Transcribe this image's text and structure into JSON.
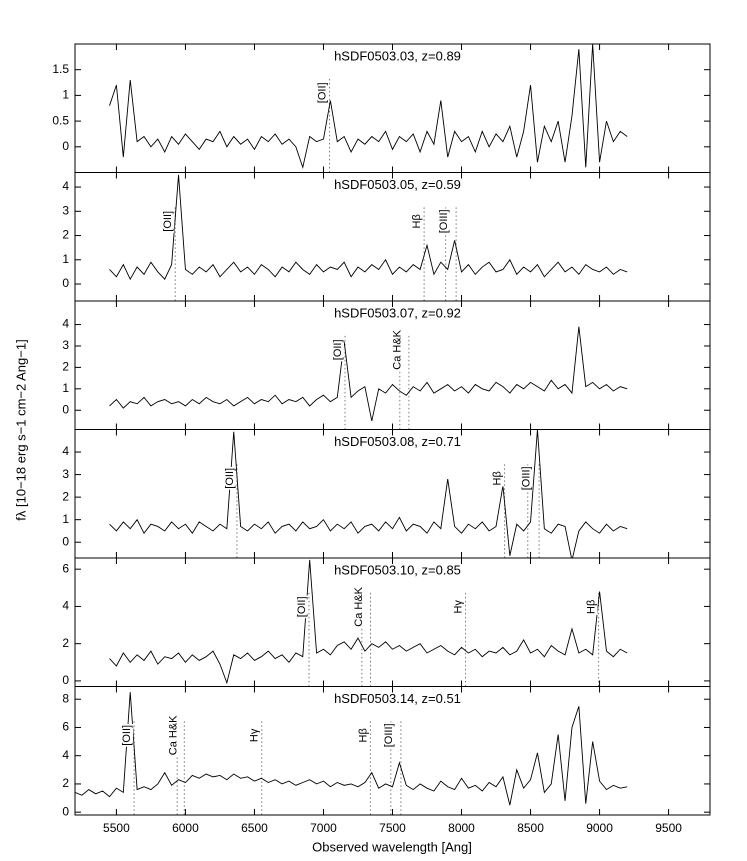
{
  "shared": {
    "xlabel": "Observed wavelength [Ang]",
    "ylabel": "fλ [10−18 erg s−1 cm−2 Ang−1]"
  },
  "chart_data": [
    {
      "type": "line",
      "title": "hSDF0503.03, z=0.89",
      "xlim": [
        5200,
        9800
      ],
      "xticks": [
        5500,
        6000,
        6500,
        7000,
        7500,
        8000,
        8500,
        9000,
        9500
      ],
      "ylim": [
        -0.5,
        2
      ],
      "yticks": [
        0,
        0.5,
        1,
        1.5
      ],
      "x": [
        5450,
        5500,
        5550,
        5600,
        5650,
        5700,
        5750,
        5800,
        5850,
        5900,
        5950,
        6000,
        6050,
        6100,
        6150,
        6200,
        6250,
        6300,
        6350,
        6400,
        6450,
        6500,
        6550,
        6600,
        6650,
        6700,
        6750,
        6800,
        6850,
        6900,
        6950,
        7000,
        7050,
        7100,
        7150,
        7200,
        7250,
        7300,
        7350,
        7400,
        7450,
        7500,
        7550,
        7600,
        7650,
        7700,
        7750,
        7800,
        7850,
        7900,
        7950,
        8000,
        8050,
        8100,
        8150,
        8200,
        8250,
        8300,
        8350,
        8400,
        8450,
        8500,
        8550,
        8600,
        8650,
        8700,
        8750,
        8800,
        8850,
        8900,
        8950,
        9000,
        9050,
        9100,
        9150,
        9200
      ],
      "series": [
        {
          "color": "#000000",
          "values": [
            0.8,
            1.2,
            -0.2,
            1.3,
            0.1,
            0.2,
            0.0,
            0.15,
            -0.1,
            0.2,
            0.05,
            0.25,
            0.1,
            -0.05,
            0.15,
            0.1,
            0.3,
            0.0,
            0.2,
            0.05,
            0.15,
            -0.05,
            0.2,
            0.1,
            0.25,
            0.05,
            0.15,
            0.0,
            -0.4,
            0.2,
            0.1,
            0.15,
            0.9,
            0.1,
            0.2,
            -0.1,
            0.15,
            0.05,
            0.2,
            0.1,
            0.3,
            -0.05,
            0.2,
            0.1,
            0.25,
            -0.1,
            0.3,
            0.05,
            0.9,
            -0.2,
            0.3,
            0.1,
            0.2,
            -0.1,
            0.3,
            0.0,
            0.25,
            0.1,
            0.4,
            -0.2,
            0.3,
            1.2,
            -0.3,
            0.4,
            0.1,
            0.5,
            -0.3,
            0.6,
            1.9,
            -0.4,
            2.0,
            -0.3,
            0.5,
            0.1,
            0.3,
            0.2
          ]
        }
      ],
      "annotations": [
        {
          "label": "[OII]",
          "x": [
            7044
          ]
        }
      ]
    },
    {
      "type": "line",
      "title": "hSDF0503.05, z=0.59",
      "xlim": [
        5200,
        9800
      ],
      "xticks": [
        5500,
        6000,
        6500,
        7000,
        7500,
        8000,
        8500,
        9000,
        9500
      ],
      "ylim": [
        -0.7,
        4.6
      ],
      "yticks": [
        0,
        1,
        2,
        3,
        4
      ],
      "x": [
        5450,
        5500,
        5550,
        5600,
        5650,
        5700,
        5750,
        5800,
        5850,
        5900,
        5950,
        6000,
        6050,
        6100,
        6150,
        6200,
        6250,
        6300,
        6350,
        6400,
        6450,
        6500,
        6550,
        6600,
        6650,
        6700,
        6750,
        6800,
        6850,
        6900,
        6950,
        7000,
        7050,
        7100,
        7150,
        7200,
        7250,
        7300,
        7350,
        7400,
        7450,
        7500,
        7550,
        7600,
        7650,
        7700,
        7750,
        7800,
        7850,
        7900,
        7950,
        8000,
        8050,
        8100,
        8150,
        8200,
        8250,
        8300,
        8350,
        8400,
        8450,
        8500,
        8550,
        8600,
        8650,
        8700,
        8750,
        8800,
        8850,
        8900,
        8950,
        9000,
        9050,
        9100,
        9150,
        9200
      ],
      "series": [
        {
          "color": "#000000",
          "values": [
            0.6,
            0.3,
            0.8,
            0.2,
            0.7,
            0.4,
            0.9,
            0.5,
            0.2,
            0.8,
            4.5,
            0.6,
            0.4,
            0.7,
            0.5,
            0.8,
            0.3,
            0.6,
            0.9,
            0.5,
            0.7,
            0.4,
            0.8,
            0.6,
            0.3,
            0.7,
            0.5,
            0.9,
            0.6,
            0.4,
            0.8,
            0.5,
            0.7,
            0.6,
            0.9,
            0.3,
            0.7,
            0.5,
            0.8,
            0.6,
            1.0,
            0.4,
            0.7,
            0.5,
            0.8,
            0.6,
            1.6,
            0.4,
            0.9,
            0.6,
            1.8,
            0.5,
            0.8,
            0.4,
            0.7,
            0.9,
            0.5,
            0.6,
            1.0,
            0.4,
            0.7,
            0.5,
            0.8,
            0.3,
            0.6,
            0.9,
            0.5,
            0.7,
            0.4,
            0.8,
            0.6,
            0.5,
            0.7,
            0.4,
            0.6,
            0.5
          ]
        }
      ],
      "annotations": [
        {
          "label": "[OII]",
          "x": [
            5926
          ]
        },
        {
          "label": "Hβ",
          "x": [
            7729
          ]
        },
        {
          "label": "[OIII]",
          "x": [
            7885,
            7961
          ]
        }
      ]
    },
    {
      "type": "line",
      "title": "hSDF0503.07, z=0.92",
      "xlim": [
        5200,
        9800
      ],
      "xticks": [
        5500,
        6000,
        6500,
        7000,
        7500,
        8000,
        8500,
        9000,
        9500
      ],
      "ylim": [
        -0.9,
        5.1
      ],
      "yticks": [
        0,
        1,
        2,
        3,
        4
      ],
      "x": [
        5450,
        5500,
        5550,
        5600,
        5650,
        5700,
        5750,
        5800,
        5850,
        5900,
        5950,
        6000,
        6050,
        6100,
        6150,
        6200,
        6250,
        6300,
        6350,
        6400,
        6450,
        6500,
        6550,
        6600,
        6650,
        6700,
        6750,
        6800,
        6850,
        6900,
        6950,
        7000,
        7050,
        7100,
        7150,
        7200,
        7250,
        7300,
        7350,
        7400,
        7450,
        7500,
        7550,
        7600,
        7650,
        7700,
        7750,
        7800,
        7850,
        7900,
        7950,
        8000,
        8050,
        8100,
        8150,
        8200,
        8250,
        8300,
        8350,
        8400,
        8450,
        8500,
        8550,
        8600,
        8650,
        8700,
        8750,
        8800,
        8850,
        8900,
        8950,
        9000,
        9050,
        9100,
        9150,
        9200
      ],
      "series": [
        {
          "color": "#000000",
          "values": [
            0.2,
            0.5,
            0.1,
            0.4,
            0.3,
            0.6,
            0.2,
            0.4,
            0.5,
            0.3,
            0.4,
            0.2,
            0.5,
            0.3,
            0.6,
            0.4,
            0.3,
            0.5,
            0.2,
            0.4,
            0.6,
            0.3,
            0.5,
            0.4,
            0.7,
            0.3,
            0.5,
            0.4,
            0.6,
            0.2,
            0.5,
            0.7,
            0.4,
            0.6,
            3.2,
            0.6,
            0.9,
            1.1,
            -0.5,
            1.0,
            0.8,
            1.2,
            0.9,
            0.7,
            1.1,
            0.9,
            1.3,
            0.8,
            1.0,
            1.2,
            0.9,
            1.1,
            0.8,
            1.2,
            1.0,
            0.9,
            1.3,
            1.1,
            0.8,
            1.2,
            1.0,
            1.3,
            1.1,
            0.9,
            1.4,
            1.0,
            1.2,
            0.8,
            3.9,
            1.1,
            1.3,
            1.0,
            1.2,
            0.9,
            1.1,
            1.0
          ]
        }
      ],
      "annotations": [
        {
          "label": "[OII]",
          "x": [
            7156
          ]
        },
        {
          "label": "Ca H&K",
          "x": [
            7553,
            7619
          ]
        }
      ]
    },
    {
      "type": "line",
      "title": "hSDF0503.08, z=0.71",
      "xlim": [
        5200,
        9800
      ],
      "xticks": [
        5500,
        6000,
        6500,
        7000,
        7500,
        8000,
        8500,
        9000,
        9500
      ],
      "ylim": [
        -0.7,
        5
      ],
      "yticks": [
        0,
        1,
        2,
        3,
        4
      ],
      "x": [
        5450,
        5500,
        5550,
        5600,
        5650,
        5700,
        5750,
        5800,
        5850,
        5900,
        5950,
        6000,
        6050,
        6100,
        6150,
        6200,
        6250,
        6300,
        6350,
        6400,
        6450,
        6500,
        6550,
        6600,
        6650,
        6700,
        6750,
        6800,
        6850,
        6900,
        6950,
        7000,
        7050,
        7100,
        7150,
        7200,
        7250,
        7300,
        7350,
        7400,
        7450,
        7500,
        7550,
        7600,
        7650,
        7700,
        7750,
        7800,
        7850,
        7900,
        7950,
        8000,
        8050,
        8100,
        8150,
        8200,
        8250,
        8300,
        8350,
        8400,
        8450,
        8500,
        8550,
        8600,
        8650,
        8700,
        8750,
        8800,
        8850,
        8900,
        8950,
        9000,
        9050,
        9100,
        9150,
        9200
      ],
      "series": [
        {
          "color": "#000000",
          "values": [
            0.8,
            0.5,
            0.9,
            0.6,
            1.0,
            0.4,
            0.8,
            0.7,
            0.5,
            0.9,
            0.6,
            0.8,
            0.4,
            0.9,
            0.7,
            0.5,
            0.8,
            0.6,
            4.9,
            0.7,
            0.5,
            0.8,
            0.6,
            0.9,
            0.4,
            0.7,
            0.8,
            0.5,
            0.9,
            0.6,
            0.7,
            1.0,
            0.5,
            0.8,
            0.6,
            0.9,
            0.4,
            0.7,
            0.8,
            0.5,
            0.9,
            0.6,
            1.1,
            0.5,
            0.8,
            0.7,
            0.4,
            0.9,
            0.6,
            2.8,
            0.7,
            0.4,
            0.8,
            0.6,
            0.9,
            0.5,
            0.7,
            2.5,
            -0.6,
            0.8,
            0.5,
            0.9,
            5.0,
            0.6,
            0.4,
            0.8,
            0.7,
            -0.8,
            0.5,
            0.9,
            0.6,
            0.4,
            0.8,
            0.5,
            0.7,
            0.6
          ]
        }
      ],
      "annotations": [
        {
          "label": "[OII]",
          "x": [
            6373
          ]
        },
        {
          "label": "Hβ",
          "x": [
            8312
          ]
        },
        {
          "label": "[OIII]",
          "x": [
            8480,
            8562
          ]
        }
      ]
    },
    {
      "type": "line",
      "title": "hSDF0503.10, z=0.85",
      "xlim": [
        5200,
        9800
      ],
      "xticks": [
        5500,
        6000,
        6500,
        7000,
        7500,
        8000,
        8500,
        9000,
        9500
      ],
      "ylim": [
        -0.3,
        6.6
      ],
      "yticks": [
        0,
        2,
        4,
        6
      ],
      "x": [
        5450,
        5500,
        5550,
        5600,
        5650,
        5700,
        5750,
        5800,
        5850,
        5900,
        5950,
        6000,
        6050,
        6100,
        6150,
        6200,
        6250,
        6300,
        6350,
        6400,
        6450,
        6500,
        6550,
        6600,
        6650,
        6700,
        6750,
        6800,
        6850,
        6900,
        6950,
        7000,
        7050,
        7100,
        7150,
        7200,
        7250,
        7300,
        7350,
        7400,
        7450,
        7500,
        7550,
        7600,
        7650,
        7700,
        7750,
        7800,
        7850,
        7900,
        7950,
        8000,
        8050,
        8100,
        8150,
        8200,
        8250,
        8300,
        8350,
        8400,
        8450,
        8500,
        8550,
        8600,
        8650,
        8700,
        8750,
        8800,
        8850,
        8900,
        8950,
        9000,
        9050,
        9100,
        9150,
        9200
      ],
      "series": [
        {
          "color": "#000000",
          "values": [
            1.2,
            0.8,
            1.5,
            1.0,
            1.4,
            1.1,
            1.6,
            0.9,
            1.3,
            1.2,
            1.5,
            1.0,
            1.4,
            1.1,
            1.3,
            1.6,
            0.9,
            -0.1,
            1.4,
            1.2,
            1.5,
            1.1,
            1.3,
            1.6,
            1.2,
            1.4,
            1.0,
            1.5,
            1.3,
            6.5,
            1.5,
            1.7,
            1.4,
            1.9,
            2.1,
            1.7,
            2.3,
            1.6,
            2.0,
            1.8,
            2.1,
            1.7,
            1.9,
            1.6,
            1.8,
            2.0,
            1.5,
            1.7,
            1.9,
            1.6,
            1.4,
            1.8,
            1.5,
            1.7,
            1.3,
            1.6,
            1.5,
            1.8,
            1.4,
            1.6,
            2.2,
            1.5,
            1.7,
            1.3,
            1.9,
            1.6,
            1.4,
            2.8,
            1.5,
            1.7,
            1.4,
            4.8,
            1.6,
            1.3,
            1.7,
            1.5
          ]
        }
      ],
      "annotations": [
        {
          "label": "[OII]",
          "x": [
            6895
          ]
        },
        {
          "label": "Ca H&K",
          "x": [
            7278,
            7341
          ]
        },
        {
          "label": "Hγ",
          "x": [
            8029
          ]
        },
        {
          "label": "Hβ",
          "x": [
            8993
          ]
        }
      ]
    },
    {
      "type": "line",
      "title": "hSDF0503.14, z=0.51",
      "xlim": [
        5200,
        9800
      ],
      "xticks": [
        5500,
        6000,
        6500,
        7000,
        7500,
        8000,
        8500,
        9000,
        9500
      ],
      "ylim": [
        -0.2,
        8.9
      ],
      "yticks": [
        0,
        2,
        4,
        6,
        8
      ],
      "x": [
        5200,
        5250,
        5300,
        5350,
        5400,
        5450,
        5500,
        5550,
        5600,
        5650,
        5700,
        5750,
        5800,
        5850,
        5900,
        5950,
        6000,
        6050,
        6100,
        6150,
        6200,
        6250,
        6300,
        6350,
        6400,
        6450,
        6500,
        6550,
        6600,
        6650,
        6700,
        6750,
        6800,
        6850,
        6900,
        6950,
        7000,
        7050,
        7100,
        7150,
        7200,
        7250,
        7300,
        7350,
        7400,
        7450,
        7500,
        7550,
        7600,
        7650,
        7700,
        7750,
        7800,
        7850,
        7900,
        7950,
        8000,
        8050,
        8100,
        8150,
        8200,
        8250,
        8300,
        8350,
        8400,
        8450,
        8500,
        8550,
        8600,
        8650,
        8700,
        8750,
        8800,
        8850,
        8900,
        8950,
        9000,
        9050,
        9100,
        9150,
        9200
      ],
      "series": [
        {
          "color": "#000000",
          "values": [
            1.4,
            1.2,
            1.6,
            1.3,
            1.5,
            1.1,
            1.7,
            1.4,
            8.5,
            1.6,
            1.8,
            1.6,
            2.0,
            2.8,
            1.9,
            2.3,
            2.1,
            2.6,
            2.4,
            2.7,
            2.5,
            2.6,
            2.3,
            2.7,
            2.4,
            2.5,
            2.2,
            2.4,
            2.1,
            2.3,
            2.0,
            2.2,
            1.9,
            2.1,
            2.3,
            2.0,
            2.2,
            1.8,
            2.1,
            1.9,
            2.0,
            1.8,
            2.1,
            2.8,
            1.7,
            2.0,
            1.8,
            3.5,
            1.9,
            1.6,
            2.0,
            1.7,
            1.5,
            2.2,
            1.8,
            1.6,
            2.4,
            1.7,
            1.9,
            1.5,
            2.1,
            1.8,
            2.5,
            0.5,
            3.0,
            1.7,
            2.3,
            4.2,
            1.4,
            2.0,
            5.5,
            0.8,
            6.0,
            7.5,
            0.6,
            5.0,
            2.2,
            1.6,
            1.9,
            1.7,
            1.8
          ]
        }
      ],
      "annotations": [
        {
          "label": "[OII]",
          "x": [
            5628
          ]
        },
        {
          "label": "Ca H&K",
          "x": [
            5940,
            5992
          ]
        },
        {
          "label": "Hγ",
          "x": [
            6553
          ]
        },
        {
          "label": "Hβ",
          "x": [
            7340
          ]
        },
        {
          "label": "[OIII]",
          "x": [
            7488,
            7561
          ]
        }
      ]
    }
  ]
}
